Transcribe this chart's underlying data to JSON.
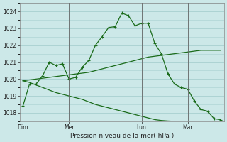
{
  "background_color": "#cce8e8",
  "grid_color": "#a8d0d0",
  "line_color": "#1a6b1a",
  "title": "Pression niveau de la mer( hPa )",
  "ylim": [
    1017.5,
    1024.5
  ],
  "yticks": [
    1018,
    1019,
    1020,
    1021,
    1022,
    1023,
    1024
  ],
  "day_labels": [
    "Dim",
    "Mer",
    "Lun",
    "Mar"
  ],
  "day_positions": [
    0,
    7,
    18,
    25
  ],
  "vline_positions": [
    0,
    7,
    18,
    25
  ],
  "series1": [
    1018.4,
    1019.7,
    1019.7,
    1020.2,
    1021.0,
    1020.8,
    1020.9,
    1020.0,
    1020.1,
    1020.7,
    1021.1,
    1022.0,
    1022.5,
    1023.05,
    1023.1,
    1023.9,
    1023.75,
    1023.15,
    1023.3,
    1023.3,
    1022.1,
    1021.5,
    1020.3,
    1019.7,
    1019.5,
    1019.4,
    1018.7,
    1018.2,
    1018.1,
    1017.65,
    1017.6
  ],
  "series2": [
    1019.9,
    1019.95,
    1020.0,
    1020.05,
    1020.1,
    1020.15,
    1020.2,
    1020.25,
    1020.3,
    1020.35,
    1020.4,
    1020.5,
    1020.6,
    1020.7,
    1020.8,
    1020.9,
    1021.0,
    1021.1,
    1021.2,
    1021.3,
    1021.35,
    1021.4,
    1021.45,
    1021.5,
    1021.55,
    1021.6,
    1021.65,
    1021.7,
    1021.7,
    1021.7,
    1021.7
  ],
  "series3": [
    1019.9,
    1019.8,
    1019.65,
    1019.5,
    1019.35,
    1019.2,
    1019.1,
    1019.0,
    1018.9,
    1018.8,
    1018.65,
    1018.5,
    1018.4,
    1018.3,
    1018.2,
    1018.1,
    1018.0,
    1017.9,
    1017.8,
    1017.7,
    1017.6,
    1017.55,
    1017.52,
    1017.5,
    1017.48,
    1017.45,
    1017.42,
    1017.4,
    1017.38,
    1017.36,
    1017.35
  ],
  "n_points": 31,
  "figsize": [
    3.2,
    2.0
  ],
  "dpi": 100
}
